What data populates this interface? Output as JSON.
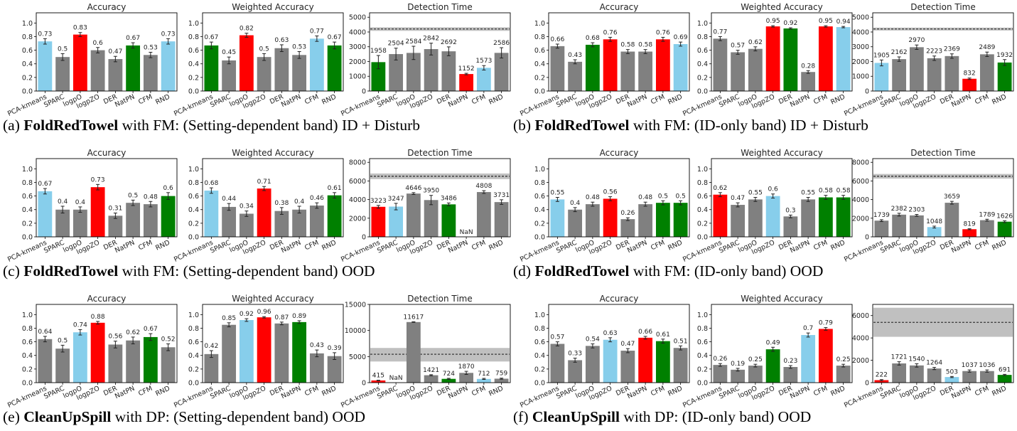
{
  "colors": {
    "gray": "#808080",
    "blue": "#87ceeb",
    "red": "#ff0000",
    "green": "#008000",
    "band": "#c0c0c0"
  },
  "captions": [
    {
      "label": "(a)",
      "task": "FoldRedTowel",
      "text": "with FM: (Setting-dependent band) ID + Disturb"
    },
    {
      "label": "(b)",
      "task": "FoldRedTowel",
      "text": "with FM: (ID-only band) ID + Disturb"
    },
    {
      "label": "(c)",
      "task": "FoldRedTowel",
      "text": "with FM: (Setting-dependent band) OOD"
    },
    {
      "label": "(d)",
      "task": "FoldRedTowel",
      "text": "with FM: (ID-only band) OOD"
    },
    {
      "label": "(e)",
      "task": "CleanUpSpill",
      "text": "with DP: (Setting-dependent band) OOD"
    },
    {
      "label": "(f)",
      "task": "CleanUpSpill",
      "text": "with DP: (ID-only band) OOD"
    }
  ],
  "chart_data": [
    {
      "type": "bar",
      "panel": "a1",
      "title": "Accuracy",
      "categories": [
        "PCA-kmeans",
        "SPARC",
        "logpO",
        "logpZO",
        "DER",
        "NatPN",
        "CFM",
        "RND"
      ],
      "values": [
        0.73,
        0.5,
        0.83,
        0.6,
        0.47,
        0.67,
        0.53,
        0.73
      ],
      "errors": [
        0.04,
        0.05,
        0.03,
        0.04,
        0.04,
        0.04,
        0.04,
        0.04
      ],
      "labels": [
        "0.73",
        "0.5",
        "0.83",
        "0.6",
        "0.47",
        "0.67",
        "0.53",
        "0.73"
      ],
      "colors": [
        "blue",
        "gray",
        "red",
        "gray",
        "gray",
        "green",
        "gray",
        "blue"
      ],
      "ylim": [
        0,
        1.15
      ],
      "yticks": [
        "0.0",
        "0.2",
        "0.4",
        "0.6",
        "0.8",
        "1.0"
      ]
    },
    {
      "type": "bar",
      "panel": "a2",
      "title": "Weighted Accuracy",
      "categories": [
        "PCA-kmeans",
        "SPARC",
        "logpO",
        "logpZO",
        "DER",
        "NatPN",
        "CFM",
        "RND"
      ],
      "values": [
        0.67,
        0.45,
        0.82,
        0.5,
        0.63,
        0.53,
        0.77,
        0.67
      ],
      "errors": [
        0.05,
        0.05,
        0.03,
        0.05,
        0.05,
        0.05,
        0.04,
        0.05
      ],
      "labels": [
        "0.67",
        "0.45",
        "0.82",
        "0.5",
        "0.63",
        "0.53",
        "0.77",
        "0.67"
      ],
      "colors": [
        "green",
        "gray",
        "red",
        "gray",
        "gray",
        "gray",
        "blue",
        "green"
      ],
      "ylim": [
        0,
        1.15
      ],
      "yticks": [
        "0.0",
        "0.2",
        "0.4",
        "0.6",
        "0.8",
        "1.0"
      ]
    },
    {
      "type": "bar",
      "panel": "a3",
      "title": "Detection Time",
      "categories": [
        "PCA-kmeans",
        "SPARC",
        "logpO",
        "logpZO",
        "DER",
        "NatPN",
        "CFM",
        "RND"
      ],
      "values": [
        1958,
        2504,
        2584,
        2842,
        2692,
        1152,
        1573,
        2586
      ],
      "errors": [
        450,
        400,
        450,
        400,
        300,
        50,
        150,
        350
      ],
      "labels": [
        "1958",
        "2504",
        "2584",
        "2842",
        "2692",
        "1152",
        "1573",
        "2586"
      ],
      "colors": [
        "green",
        "gray",
        "gray",
        "gray",
        "gray",
        "red",
        "blue",
        "gray"
      ],
      "ylim": [
        0,
        5300
      ],
      "yticks": [
        "0",
        "1000",
        "2000",
        "3000",
        "4000",
        "5000"
      ],
      "hline": 4200,
      "band": [
        4080,
        4320
      ]
    },
    {
      "type": "bar",
      "panel": "b1",
      "title": "Accuracy",
      "categories": [
        "PCA-kmeans",
        "SPARC",
        "logpO",
        "logpZO",
        "DER",
        "NatPN",
        "CFM",
        "RND"
      ],
      "values": [
        0.66,
        0.43,
        0.68,
        0.76,
        0.58,
        0.58,
        0.76,
        0.69
      ],
      "errors": [
        0.03,
        0.03,
        0.03,
        0.03,
        0.03,
        0.03,
        0.03,
        0.03
      ],
      "labels": [
        "0.66",
        "0.43",
        "0.68",
        "0.76",
        "0.58",
        "0.58",
        "0.76",
        "0.69"
      ],
      "colors": [
        "gray",
        "gray",
        "green",
        "red",
        "gray",
        "gray",
        "red",
        "blue"
      ],
      "ylim": [
        0,
        1.15
      ],
      "yticks": [
        "0.0",
        "0.2",
        "0.4",
        "0.6",
        "0.8",
        "1.0"
      ]
    },
    {
      "type": "bar",
      "panel": "b2",
      "title": "Weighted Accuracy",
      "categories": [
        "PCA-kmeans",
        "SPARC",
        "logpO",
        "logpZO",
        "DER",
        "NatPN",
        "CFM",
        "RND"
      ],
      "values": [
        0.77,
        0.57,
        0.62,
        0.95,
        0.92,
        0.28,
        0.95,
        0.94
      ],
      "errors": [
        0.03,
        0.03,
        0.03,
        0.01,
        0.01,
        0.02,
        0.01,
        0.01
      ],
      "labels": [
        "0.77",
        "0.57",
        "0.62",
        "0.95",
        "0.92",
        "0.28",
        "0.95",
        "0.94"
      ],
      "colors": [
        "gray",
        "gray",
        "gray",
        "red",
        "green",
        "gray",
        "red",
        "blue"
      ],
      "ylim": [
        0,
        1.15
      ],
      "yticks": [
        "0.0",
        "0.2",
        "0.4",
        "0.6",
        "0.8",
        "1.0"
      ]
    },
    {
      "type": "bar",
      "panel": "b3",
      "title": "Detection Time",
      "categories": [
        "PCA-kmeans",
        "SPARC",
        "logpO",
        "logpZO",
        "DER",
        "NatPN",
        "CFM",
        "RND"
      ],
      "values": [
        1905,
        2162,
        2970,
        2223,
        2369,
        832,
        2489,
        1932
      ],
      "errors": [
        200,
        150,
        150,
        150,
        150,
        50,
        150,
        200
      ],
      "labels": [
        "1905",
        "2162",
        "2970",
        "2223",
        "2369",
        "832",
        "2489",
        "1932"
      ],
      "colors": [
        "blue",
        "gray",
        "gray",
        "gray",
        "gray",
        "red",
        "gray",
        "green"
      ],
      "ylim": [
        0,
        5300
      ],
      "yticks": [
        "0",
        "1000",
        "2000",
        "3000",
        "4000",
        "5000"
      ],
      "hline": 4200,
      "band": [
        4100,
        4300
      ]
    },
    {
      "type": "bar",
      "panel": "c1",
      "title": "Accuracy",
      "categories": [
        "PCA-kmeans",
        "SPARC",
        "logpO",
        "logpZO",
        "DER",
        "NatPN",
        "CFM",
        "RND"
      ],
      "values": [
        0.67,
        0.4,
        0.4,
        0.73,
        0.31,
        0.5,
        0.48,
        0.6
      ],
      "errors": [
        0.04,
        0.05,
        0.04,
        0.04,
        0.04,
        0.04,
        0.04,
        0.05
      ],
      "labels": [
        "0.67",
        "0.4",
        "0.4",
        "0.73",
        "0.31",
        "0.5",
        "0.48",
        "0.6"
      ],
      "colors": [
        "blue",
        "gray",
        "gray",
        "red",
        "gray",
        "gray",
        "gray",
        "green"
      ],
      "ylim": [
        0,
        1.15
      ],
      "yticks": [
        "0.0",
        "0.2",
        "0.4",
        "0.6",
        "0.8",
        "1.0"
      ]
    },
    {
      "type": "bar",
      "panel": "c2",
      "title": "Weighted Accuracy",
      "categories": [
        "PCA-kmeans",
        "SPARC",
        "logpO",
        "logpZO",
        "DER",
        "NatPN",
        "CFM",
        "RND"
      ],
      "values": [
        0.68,
        0.44,
        0.34,
        0.71,
        0.38,
        0.4,
        0.46,
        0.61
      ],
      "errors": [
        0.04,
        0.05,
        0.04,
        0.03,
        0.05,
        0.05,
        0.04,
        0.04
      ],
      "labels": [
        "0.68",
        "0.44",
        "0.34",
        "0.71",
        "0.38",
        "0.4",
        "0.46",
        "0.61"
      ],
      "colors": [
        "blue",
        "gray",
        "gray",
        "red",
        "gray",
        "gray",
        "gray",
        "green"
      ],
      "ylim": [
        0,
        1.15
      ],
      "yticks": [
        "0.0",
        "0.2",
        "0.4",
        "0.6",
        "0.8",
        "1.0"
      ]
    },
    {
      "type": "bar",
      "panel": "c3",
      "title": "Detection Time",
      "categories": [
        "PCA-kmeans",
        "SPARC",
        "logpO",
        "logpZO",
        "DER",
        "NatPN",
        "CFM",
        "RND"
      ],
      "values": [
        3223,
        3247,
        4646,
        3950,
        3486,
        null,
        4808,
        3731
      ],
      "errors": [
        150,
        350,
        100,
        500,
        150,
        0,
        150,
        250
      ],
      "labels": [
        "3223",
        "3247",
        "4646",
        "3950",
        "3486",
        "NaN",
        "4808",
        "3731"
      ],
      "colors": [
        "red",
        "blue",
        "gray",
        "gray",
        "green",
        "gray",
        "gray",
        "gray"
      ],
      "ylim": [
        0,
        8400
      ],
      "yticks": [
        "0",
        "2000",
        "4000",
        "6000",
        "8000"
      ],
      "hline": 6500,
      "band": [
        6200,
        6800
      ]
    },
    {
      "type": "bar",
      "panel": "d1",
      "title": "Accuracy",
      "categories": [
        "PCA-kmeans",
        "SPARC",
        "logpO",
        "logpZO",
        "DER",
        "NatPN",
        "CFM",
        "RND"
      ],
      "values": [
        0.55,
        0.4,
        0.48,
        0.56,
        0.26,
        0.48,
        0.5,
        0.5
      ],
      "errors": [
        0.03,
        0.03,
        0.03,
        0.03,
        0.02,
        0.03,
        0.03,
        0.03
      ],
      "labels": [
        "0.55",
        "0.4",
        "0.48",
        "0.56",
        "0.26",
        "0.48",
        "0.5",
        "0.5"
      ],
      "colors": [
        "blue",
        "gray",
        "gray",
        "red",
        "gray",
        "gray",
        "green",
        "green"
      ],
      "ylim": [
        0,
        1.15
      ],
      "yticks": [
        "0.0",
        "0.2",
        "0.4",
        "0.6",
        "0.8",
        "1.0"
      ]
    },
    {
      "type": "bar",
      "panel": "d2",
      "title": "Weighted Accuracy",
      "categories": [
        "PCA-kmeans",
        "SPARC",
        "logpO",
        "logpZO",
        "DER",
        "NatPN",
        "CFM",
        "RND"
      ],
      "values": [
        0.62,
        0.47,
        0.55,
        0.6,
        0.3,
        0.55,
        0.58,
        0.58
      ],
      "errors": [
        0.03,
        0.03,
        0.03,
        0.03,
        0.02,
        0.03,
        0.03,
        0.03
      ],
      "labels": [
        "0.62",
        "0.47",
        "0.55",
        "0.6",
        "0.3",
        "0.55",
        "0.58",
        "0.58"
      ],
      "colors": [
        "red",
        "gray",
        "gray",
        "blue",
        "gray",
        "gray",
        "green",
        "green"
      ],
      "ylim": [
        0,
        1.15
      ],
      "yticks": [
        "0.0",
        "0.2",
        "0.4",
        "0.6",
        "0.8",
        "1.0"
      ]
    },
    {
      "type": "bar",
      "panel": "d3",
      "title": "Detection Time",
      "categories": [
        "PCA-kmeans",
        "SPARC",
        "logpO",
        "logpZO",
        "DER",
        "NatPN",
        "CFM",
        "RND"
      ],
      "values": [
        1739,
        2382,
        2303,
        1048,
        3659,
        819,
        1789,
        1626
      ],
      "errors": [
        100,
        150,
        100,
        100,
        150,
        50,
        100,
        100
      ],
      "labels": [
        "1739",
        "2382",
        "2303",
        "1048",
        "3659",
        "819",
        "1789",
        "1626"
      ],
      "colors": [
        "gray",
        "gray",
        "gray",
        "blue",
        "gray",
        "red",
        "gray",
        "green"
      ],
      "ylim": [
        0,
        8400
      ],
      "yticks": [
        "0",
        "2000",
        "4000",
        "6000",
        "8000"
      ],
      "hline": 6500,
      "band": [
        6250,
        6750
      ]
    },
    {
      "type": "bar",
      "panel": "e1",
      "title": "Accuracy",
      "categories": [
        "PCA-kmeans",
        "SPARC",
        "logpO",
        "logpZO",
        "DER",
        "NatPN",
        "CFM",
        "RND"
      ],
      "values": [
        0.64,
        0.5,
        0.74,
        0.88,
        0.56,
        0.62,
        0.67,
        0.52
      ],
      "errors": [
        0.04,
        0.05,
        0.04,
        0.02,
        0.05,
        0.05,
        0.05,
        0.05
      ],
      "labels": [
        "0.64",
        "0.5",
        "0.74",
        "0.88",
        "0.56",
        "0.62",
        "0.67",
        "0.52"
      ],
      "colors": [
        "gray",
        "gray",
        "blue",
        "red",
        "gray",
        "gray",
        "green",
        "gray"
      ],
      "ylim": [
        0,
        1.15
      ],
      "yticks": [
        "0.0",
        "0.2",
        "0.4",
        "0.6",
        "0.8",
        "1.0"
      ]
    },
    {
      "type": "bar",
      "panel": "e2",
      "title": "Weighted Accuracy",
      "categories": [
        "PCA-kmeans",
        "SPARC",
        "logpO",
        "logpZO",
        "DER",
        "NatPN",
        "CFM",
        "RND"
      ],
      "values": [
        0.42,
        0.85,
        0.92,
        0.96,
        0.87,
        0.89,
        0.43,
        0.39
      ],
      "errors": [
        0.05,
        0.03,
        0.02,
        0.01,
        0.02,
        0.02,
        0.05,
        0.05
      ],
      "labels": [
        "0.42",
        "0.85",
        "0.92",
        "0.96",
        "0.87",
        "0.89",
        "0.43",
        "0.39"
      ],
      "colors": [
        "gray",
        "gray",
        "blue",
        "red",
        "gray",
        "green",
        "gray",
        "gray"
      ],
      "ylim": [
        0,
        1.15
      ],
      "yticks": [
        "0.0",
        "0.2",
        "0.4",
        "0.6",
        "0.8",
        "1.0"
      ]
    },
    {
      "type": "bar",
      "panel": "e3",
      "title": "Detection Time",
      "categories": [
        "PCA-kmeans",
        "SPARC",
        "logpO",
        "logpZO",
        "DER",
        "NatPN",
        "CFM",
        "RND"
      ],
      "values": [
        415,
        null,
        11617,
        1421,
        724,
        1870,
        712,
        759
      ],
      "errors": [
        50,
        0,
        50,
        100,
        100,
        300,
        100,
        100
      ],
      "labels": [
        "415",
        "NaN",
        "11617",
        "1421",
        "724",
        "1870",
        "712",
        "759"
      ],
      "colors": [
        "red",
        "gray",
        "gray",
        "gray",
        "green",
        "gray",
        "blue",
        "gray"
      ],
      "ylim": [
        0,
        15000
      ],
      "yticks": [
        "0",
        "5000",
        "10000",
        "15000"
      ],
      "hline": 5450,
      "band": [
        4050,
        6650
      ]
    },
    {
      "type": "bar",
      "panel": "f1",
      "title": "Accuracy",
      "categories": [
        "PCA-kmeans",
        "SPARC",
        "logpO",
        "logpZO",
        "DER",
        "NatPN",
        "CFM",
        "RND"
      ],
      "values": [
        0.57,
        0.33,
        0.54,
        0.63,
        0.47,
        0.66,
        0.61,
        0.51
      ],
      "errors": [
        0.03,
        0.03,
        0.03,
        0.03,
        0.03,
        0.02,
        0.03,
        0.03
      ],
      "labels": [
        "0.57",
        "0.33",
        "0.54",
        "0.63",
        "0.47",
        "0.66",
        "0.61",
        "0.51"
      ],
      "colors": [
        "gray",
        "gray",
        "gray",
        "blue",
        "gray",
        "red",
        "green",
        "gray"
      ],
      "ylim": [
        0,
        1.15
      ],
      "yticks": [
        "0.0",
        "0.2",
        "0.4",
        "0.6",
        "0.8",
        "1.0"
      ]
    },
    {
      "type": "bar",
      "panel": "f2",
      "title": "Weighted Accuracy",
      "categories": [
        "PCA-kmeans",
        "SPARC",
        "logpO",
        "logpZO",
        "DER",
        "NatPN",
        "CFM",
        "RND"
      ],
      "values": [
        0.26,
        0.19,
        0.25,
        0.49,
        0.23,
        0.7,
        0.79,
        0.25
      ],
      "errors": [
        0.02,
        0.02,
        0.02,
        0.03,
        0.02,
        0.03,
        0.02,
        0.02
      ],
      "labels": [
        "0.26",
        "0.19",
        "0.25",
        "0.49",
        "0.23",
        "0.7",
        "0.79",
        "0.25"
      ],
      "colors": [
        "gray",
        "gray",
        "gray",
        "green",
        "gray",
        "blue",
        "red",
        "gray"
      ],
      "ylim": [
        0,
        1.15
      ],
      "yticks": [
        "0.0",
        "0.2",
        "0.4",
        "0.6",
        "0.8",
        "1.0"
      ]
    },
    {
      "type": "bar",
      "panel": "f3",
      "title": "",
      "categories": [
        "PCA-kmeans",
        "SPARC",
        "logpO",
        "logpZO",
        "DER",
        "NatPN",
        "CFM",
        "RND"
      ],
      "values": [
        222,
        1721,
        1540,
        1264,
        503,
        1037,
        1036,
        691
      ],
      "errors": [
        50,
        150,
        150,
        100,
        50,
        100,
        100,
        50
      ],
      "labels": [
        "222",
        "1721",
        "1540",
        "1264",
        "503",
        "1037",
        "1036",
        "691"
      ],
      "colors": [
        "red",
        "gray",
        "gray",
        "gray",
        "blue",
        "gray",
        "gray",
        "green"
      ],
      "ylim": [
        0,
        7000
      ],
      "yticks": [
        "0",
        "2000",
        "4000",
        "6000"
      ],
      "hline": 5400,
      "band": [
        4100,
        6700
      ]
    }
  ]
}
